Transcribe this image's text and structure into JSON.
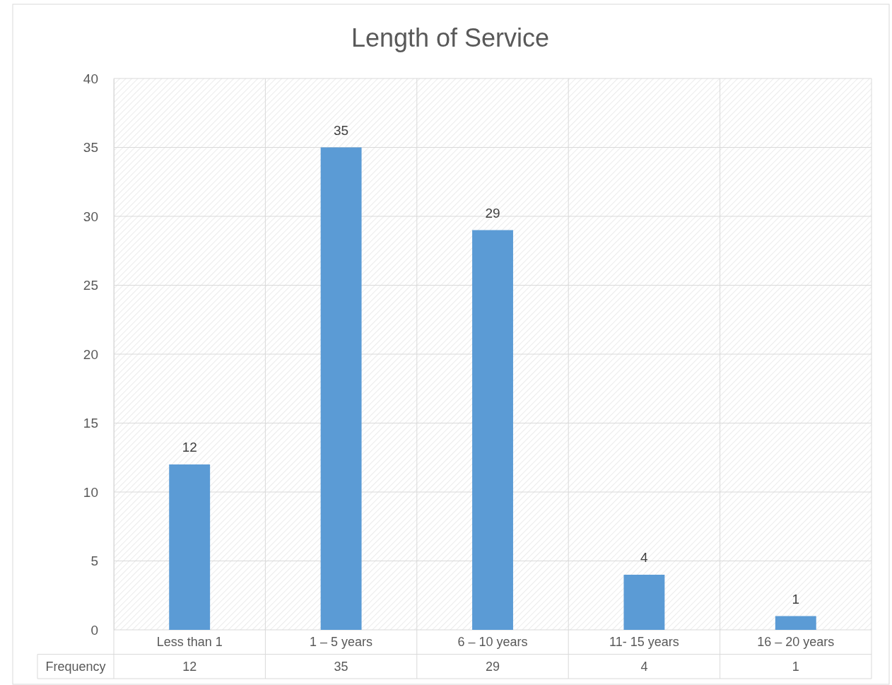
{
  "chart_data": {
    "type": "bar",
    "title": "Length of Service",
    "categories": [
      "Less than 1",
      "1 – 5 years",
      "6 – 10 years",
      "11- 15 years",
      "16 – 20 years"
    ],
    "series": [
      {
        "name": "Frequency",
        "color": "#5b9bd5",
        "values": [
          12,
          35,
          29,
          4,
          1
        ],
        "value_labels": [
          "12",
          "35",
          "29",
          "4",
          "1"
        ]
      }
    ],
    "annotations": [
      "12",
      "35",
      "29",
      "4",
      "1"
    ],
    "ylim": [
      0,
      40
    ],
    "yticks": [
      0,
      5,
      10,
      15,
      20,
      25,
      30,
      35,
      40
    ],
    "grid": true,
    "data_labels": true
  }
}
